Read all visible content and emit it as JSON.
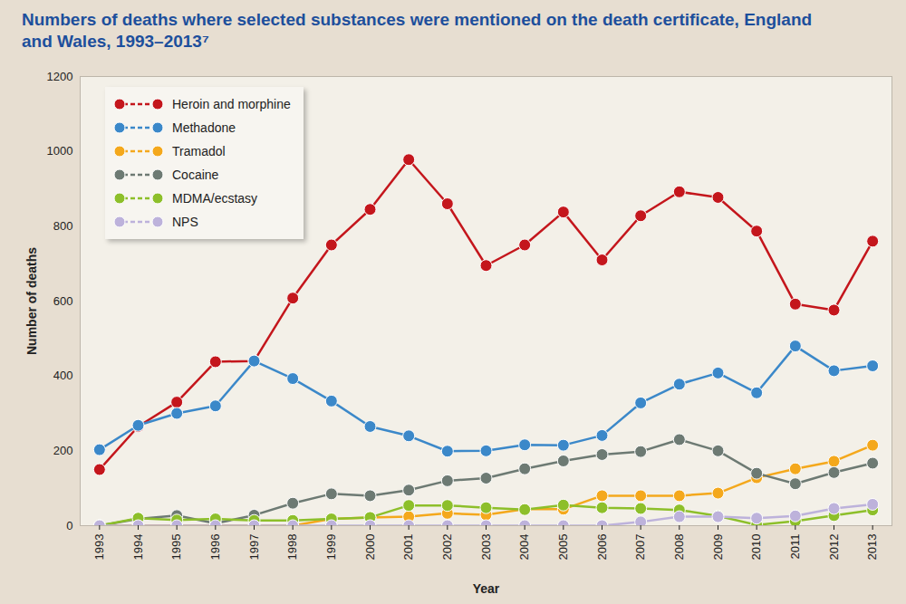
{
  "chart_data": {
    "type": "line",
    "title": "Numbers of deaths where selected substances were mentioned on the death certificate, England and Wales, 1993–2013⁷",
    "x_label": "Year",
    "y_label": "Number of deaths",
    "x": [
      1993,
      1994,
      1995,
      1996,
      1997,
      1998,
      1999,
      2000,
      2001,
      2002,
      2003,
      2004,
      2005,
      2006,
      2007,
      2008,
      2009,
      2010,
      2011,
      2012,
      2013
    ],
    "xlim": [
      1992.5,
      2013.5
    ],
    "xticks": [
      1993,
      1994,
      1995,
      1996,
      1997,
      1998,
      1999,
      2000,
      2001,
      2002,
      2003,
      2004,
      2005,
      2006,
      2007,
      2008,
      2009,
      2010,
      2011,
      2012,
      2013
    ],
    "ylim": [
      0,
      1200
    ],
    "yticks": [
      0,
      200,
      400,
      600,
      800,
      1000,
      1200
    ],
    "grid": false,
    "legend": "top-left",
    "marker": "circle",
    "series": [
      {
        "name": "Heroin and morphine",
        "color": "#c4161c",
        "values": [
          150,
          265,
          330,
          438,
          440,
          608,
          750,
          845,
          978,
          860,
          695,
          750,
          838,
          710,
          828,
          892,
          877,
          787,
          592,
          576,
          760
        ]
      },
      {
        "name": "Methadone",
        "color": "#3b88c9",
        "values": [
          203,
          268,
          300,
          320,
          440,
          393,
          333,
          265,
          240,
          199,
          200,
          216,
          215,
          241,
          328,
          378,
          408,
          355,
          480,
          414,
          427
        ]
      },
      {
        "name": "Tramadol",
        "color": "#f4a81c",
        "values": [
          0,
          0,
          0,
          0,
          0,
          0,
          18,
          22,
          24,
          33,
          29,
          44,
          44,
          80,
          80,
          80,
          87,
          128,
          152,
          172,
          215
        ]
      },
      {
        "name": "Cocaine",
        "color": "#6d7a73",
        "values": [
          0,
          18,
          27,
          6,
          28,
          60,
          85,
          80,
          95,
          120,
          127,
          152,
          173,
          190,
          198,
          230,
          200,
          140,
          112,
          142,
          167
        ]
      },
      {
        "name": "MDMA/ecstasy",
        "color": "#8dbf2a",
        "values": [
          0,
          20,
          15,
          18,
          14,
          14,
          18,
          22,
          54,
          54,
          48,
          43,
          55,
          48,
          46,
          42,
          26,
          2,
          12,
          27,
          42
        ]
      },
      {
        "name": "NPS",
        "color": "#bdb2db",
        "values": [
          0,
          0,
          0,
          0,
          0,
          0,
          0,
          0,
          0,
          0,
          0,
          0,
          0,
          0,
          10,
          24,
          24,
          20,
          26,
          46,
          57
        ]
      }
    ]
  }
}
